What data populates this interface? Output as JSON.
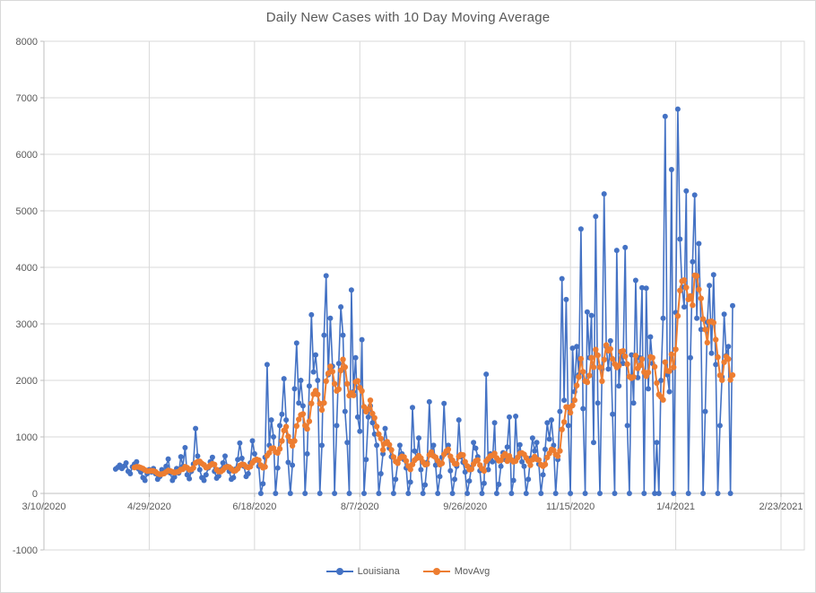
{
  "chart_data": {
    "type": "line",
    "title": "Daily New Cases with 10 Day Moving Average",
    "grid": true,
    "legend_position": "bottom",
    "x_axis": {
      "start": "3/10/2020",
      "end": "2/23/2021",
      "tick_interval_days": 50,
      "tick_labels": [
        "3/10/2020",
        "4/29/2020",
        "6/18/2020",
        "8/7/2020",
        "9/26/2020",
        "11/15/2020",
        "1/4/2021",
        "2/23/2021"
      ]
    },
    "y_axis": {
      "min": -1000,
      "max": 8000,
      "tick_step": 1000,
      "tick_labels": [
        "-1000",
        "0",
        "1000",
        "2000",
        "3000",
        "4000",
        "5000",
        "6000",
        "7000",
        "8000"
      ]
    },
    "series": [
      {
        "name": "Louisiana",
        "color": "#4472C4",
        "marker": "circle",
        "start_date": "4/13/2020",
        "frequency": "daily",
        "values": [
          430,
          460,
          500,
          440,
          480,
          540,
          390,
          350,
          470,
          520,
          560,
          430,
          380,
          280,
          230,
          350,
          420,
          380,
          440,
          350,
          250,
          300,
          420,
          390,
          480,
          610,
          360,
          230,
          290,
          440,
          360,
          650,
          480,
          810,
          330,
          260,
          390,
          520,
          1150,
          660,
          420,
          280,
          230,
          330,
          450,
          560,
          640,
          390,
          270,
          310,
          420,
          540,
          660,
          480,
          390,
          250,
          280,
          430,
          600,
          890,
          620,
          480,
          300,
          350,
          540,
          930,
          700,
          600,
          480,
          0,
          170,
          640,
          2280,
          850,
          1300,
          1000,
          0,
          450,
          1200,
          1400,
          2030,
          1300,
          550,
          0,
          500,
          1850,
          2660,
          1600,
          2000,
          1550,
          0,
          700,
          1900,
          3160,
          2150,
          2450,
          2000,
          0,
          850,
          2800,
          3850,
          2100,
          3100,
          2250,
          0,
          1200,
          2300,
          3300,
          2800,
          1450,
          900,
          0,
          3600,
          1800,
          2400,
          1350,
          1100,
          2720,
          0,
          600,
          1350,
          1550,
          1250,
          1050,
          850,
          0,
          350,
          700,
          1150,
          900,
          800,
          650,
          0,
          250,
          550,
          850,
          700,
          600,
          450,
          0,
          200,
          1520,
          750,
          620,
          980,
          420,
          0,
          150,
          550,
          1620,
          700,
          850,
          500,
          0,
          300,
          640,
          1590,
          720,
          850,
          400,
          0,
          250,
          480,
          1300,
          650,
          550,
          380,
          0,
          220,
          460,
          900,
          800,
          650,
          400,
          0,
          180,
          2110,
          420,
          700,
          560,
          1250,
          0,
          160,
          480,
          720,
          600,
          820,
          1350,
          0,
          230,
          1365,
          640,
          860,
          560,
          480,
          0,
          250,
          620,
          980,
          750,
          900,
          520,
          0,
          330,
          780,
          1250,
          960,
          1300,
          850,
          0,
          600,
          1450,
          3800,
          1650,
          3430,
          1200,
          0,
          2570,
          1800,
          2600,
          2100,
          4680,
          1500,
          0,
          3210,
          2400,
          3150,
          900,
          4900,
          1600,
          0,
          2200,
          5300,
          2600,
          2200,
          2700,
          1400,
          0,
          4300,
          1900,
          2500,
          2300,
          4350,
          1200,
          0,
          2450,
          1600,
          3770,
          2050,
          2400,
          3640,
          0,
          3630,
          1850,
          2770,
          2300,
          0,
          900,
          0,
          2000,
          3100,
          6670,
          2100,
          1800,
          5730,
          0,
          3200,
          6800,
          4500,
          3650,
          3300,
          5350,
          0,
          2400,
          4100,
          5280,
          3100,
          4420,
          2900,
          0,
          1450,
          3030,
          3680,
          2480,
          3870,
          2280,
          0,
          1200,
          2060,
          3170,
          2440,
          2600,
          0,
          3320
        ]
      },
      {
        "name": "MovAvg",
        "color": "#ED7D31",
        "marker": "circle",
        "derived_from": "Louisiana",
        "window": 10,
        "description": "10 day moving average of Louisiana daily values"
      }
    ]
  }
}
